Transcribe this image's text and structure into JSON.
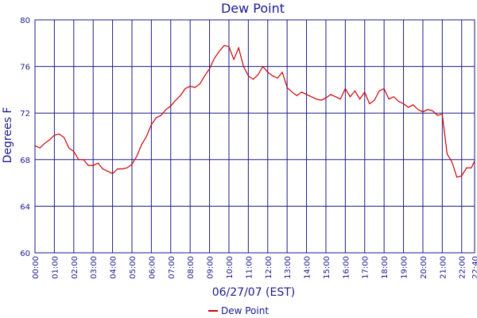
{
  "chart_data": {
    "type": "line",
    "title": "Dew Point",
    "xlabel": "06/27/07 (EST)",
    "ylabel": "Degrees F",
    "ylim": [
      60,
      80
    ],
    "yticks": [
      "60",
      "64",
      "68",
      "72",
      "76",
      "80"
    ],
    "xticks": [
      "00:00",
      "01:00",
      "02:00",
      "03:00",
      "04:00",
      "05:00",
      "06:00",
      "07:00",
      "08:00",
      "09:00",
      "10:00",
      "11:00",
      "12:00",
      "13:00",
      "14:00",
      "15:00",
      "16:00",
      "17:00",
      "18:00",
      "19:00",
      "20:00",
      "21:00",
      "22:00",
      "22:40"
    ],
    "xlim_hours": [
      0,
      22.667
    ],
    "grid": true,
    "legend": "bottom-center",
    "colors": {
      "axis": "#1a1a8c",
      "grid": "#1a1a8c",
      "series": "#cc0000"
    },
    "series": [
      {
        "name": "Dew Point",
        "x": [
          0,
          0.25,
          0.5,
          0.75,
          1.0,
          1.25,
          1.5,
          1.75,
          2.0,
          2.25,
          2.5,
          2.75,
          3.0,
          3.25,
          3.5,
          3.75,
          4.0,
          4.25,
          4.5,
          4.75,
          5.0,
          5.25,
          5.5,
          5.75,
          6.0,
          6.25,
          6.5,
          6.75,
          7.0,
          7.25,
          7.5,
          7.75,
          8.0,
          8.25,
          8.5,
          8.75,
          9.0,
          9.25,
          9.5,
          9.75,
          10.0,
          10.25,
          10.5,
          10.75,
          11.0,
          11.25,
          11.5,
          11.75,
          12.0,
          12.25,
          12.5,
          12.75,
          13.0,
          13.25,
          13.5,
          13.75,
          14.0,
          14.25,
          14.5,
          14.75,
          15.0,
          15.25,
          15.5,
          15.75,
          16.0,
          16.25,
          16.5,
          16.75,
          17.0,
          17.25,
          17.5,
          17.75,
          18.0,
          18.25,
          18.5,
          18.75,
          19.0,
          19.25,
          19.5,
          19.75,
          20.0,
          20.25,
          20.5,
          20.75,
          21.0,
          21.25,
          21.5,
          21.75,
          22.0,
          22.25,
          22.5,
          22.667
        ],
        "values": [
          69.2,
          69.0,
          69.4,
          69.7,
          70.1,
          70.2,
          69.9,
          69.0,
          68.7,
          68.0,
          68.0,
          67.5,
          67.5,
          67.7,
          67.2,
          67.0,
          66.8,
          67.2,
          67.2,
          67.3,
          67.6,
          68.3,
          69.3,
          70.0,
          71.0,
          71.6,
          71.8,
          72.3,
          72.6,
          73.1,
          73.5,
          74.1,
          74.3,
          74.2,
          74.5,
          75.2,
          75.8,
          76.7,
          77.3,
          77.8,
          77.7,
          76.6,
          77.6,
          76.0,
          75.2,
          74.9,
          75.3,
          76.0,
          75.5,
          75.2,
          75.0,
          75.5,
          74.2,
          73.8,
          73.5,
          73.8,
          73.6,
          73.4,
          73.2,
          73.1,
          73.3,
          73.6,
          73.4,
          73.2,
          74.1,
          73.4,
          73.9,
          73.2,
          73.8,
          72.8,
          73.1,
          73.9,
          74.1,
          73.2,
          73.4,
          73.0,
          72.8,
          72.5,
          72.7,
          72.3,
          72.1,
          72.3,
          72.2,
          71.8,
          71.9,
          68.5,
          67.8,
          66.5,
          66.6,
          67.3,
          67.3,
          67.9
        ]
      }
    ]
  }
}
